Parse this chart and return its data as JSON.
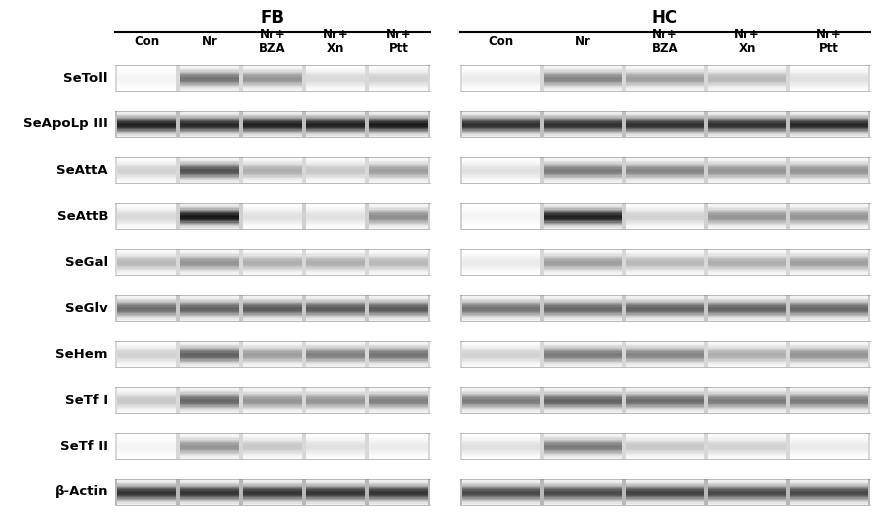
{
  "title_fb": "FB",
  "title_hc": "HC",
  "row_labels": [
    "SeToll",
    "SeApoLp III",
    "SeAttA",
    "SeAttB",
    "SeGal",
    "SeGlv",
    "SeHem",
    "SeTf I",
    "SeTf II",
    "β-Actin"
  ],
  "col_labels_line1": [
    "",
    "",
    "Nr+",
    "Nr+",
    "Nr+"
  ],
  "col_labels_line2": [
    "Con",
    "Nr",
    "BZA",
    "Xn",
    "Ptt"
  ],
  "bg_color": "#ffffff",
  "fb_bands": [
    [
      0.04,
      0.55,
      0.42,
      0.15,
      0.18
    ],
    [
      0.88,
      0.85,
      0.88,
      0.88,
      0.9
    ],
    [
      0.18,
      0.68,
      0.32,
      0.22,
      0.38
    ],
    [
      0.15,
      0.92,
      0.12,
      0.12,
      0.45
    ],
    [
      0.28,
      0.42,
      0.32,
      0.32,
      0.28
    ],
    [
      0.58,
      0.62,
      0.65,
      0.65,
      0.65
    ],
    [
      0.18,
      0.62,
      0.38,
      0.5,
      0.55
    ],
    [
      0.22,
      0.6,
      0.42,
      0.42,
      0.5
    ],
    [
      0.04,
      0.42,
      0.22,
      0.12,
      0.08
    ],
    [
      0.8,
      0.8,
      0.8,
      0.8,
      0.8
    ]
  ],
  "hc_bands": [
    [
      0.08,
      0.48,
      0.38,
      0.28,
      0.12
    ],
    [
      0.82,
      0.82,
      0.82,
      0.82,
      0.85
    ],
    [
      0.12,
      0.52,
      0.48,
      0.42,
      0.42
    ],
    [
      0.04,
      0.88,
      0.18,
      0.42,
      0.42
    ],
    [
      0.08,
      0.38,
      0.28,
      0.32,
      0.38
    ],
    [
      0.55,
      0.6,
      0.62,
      0.62,
      0.6
    ],
    [
      0.18,
      0.52,
      0.48,
      0.32,
      0.42
    ],
    [
      0.52,
      0.62,
      0.58,
      0.52,
      0.52
    ],
    [
      0.12,
      0.52,
      0.22,
      0.18,
      0.08
    ],
    [
      0.72,
      0.72,
      0.75,
      0.72,
      0.72
    ]
  ],
  "row_bg_fb": [
    "#d8d8d8",
    "#c0c0c0",
    "#d8d8d8",
    "#d0d0d0",
    "#d8d8d8",
    "#c8c8c8",
    "#d8d8d8",
    "#d8d8d8",
    "#d8d8d8",
    "#b8b8b8"
  ],
  "row_bg_hc": [
    "#d8d8d8",
    "#c0c0c0",
    "#d0d0d0",
    "#d0d0d0",
    "#d8d8d8",
    "#c8c8c8",
    "#d8d8d8",
    "#d0d0d0",
    "#d8d8d8",
    "#b8b8b8"
  ]
}
